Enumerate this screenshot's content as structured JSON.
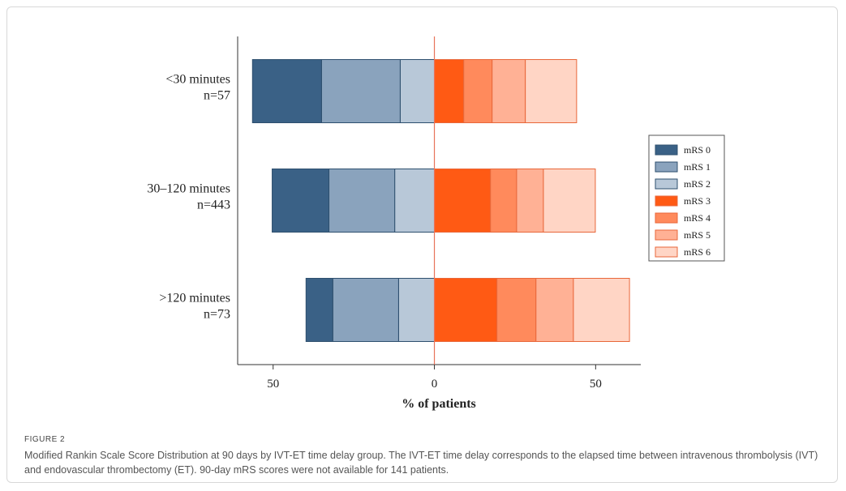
{
  "chart_data": {
    "type": "diverging_bar",
    "xlabel": "% of patients",
    "categories": [
      [
        "<30 minutes",
        "n=57"
      ],
      [
        "30–120 minutes",
        "n=443"
      ],
      [
        ">120 minutes",
        "n=73"
      ]
    ],
    "series": [
      {
        "name": "mRS 0",
        "color": "#3a6186",
        "values": [
          -21.4,
          -17.6,
          -8.3
        ]
      },
      {
        "name": "mRS 1",
        "color": "#8aa3bd",
        "values": [
          -24.4,
          -20.4,
          -20.4
        ]
      },
      {
        "name": "mRS 2",
        "color": "#b8c8d8",
        "values": [
          -10.6,
          -12.3,
          -11.1
        ]
      },
      {
        "name": "mRS 3",
        "color": "#ff5a14",
        "values": [
          9.1,
          17.4,
          19.4
        ]
      },
      {
        "name": "mRS 4",
        "color": "#ff8a5c",
        "values": [
          8.8,
          8.1,
          12.1
        ]
      },
      {
        "name": "mRS 5",
        "color": "#ffb195",
        "values": [
          10.3,
          8.3,
          11.6
        ]
      },
      {
        "name": "mRS 6",
        "color": "#ffd5c5",
        "values": [
          15.9,
          16.1,
          17.4
        ]
      }
    ],
    "xlim": [
      -61,
      64
    ],
    "xticks": [
      {
        "value": -50,
        "label": "50"
      },
      0,
      50
    ],
    "zero_line_color": "#e8735a",
    "legend": "right"
  },
  "caption": {
    "label": "FIGURE 2",
    "text": "Modified Rankin Scale Score Distribution at 90 days by IVT-ET time delay group. The IVT-ET time delay corresponds to the elapsed time between intravenous thrombolysis (IVT) and endovascular thrombectomy (ET). 90-day mRS scores were not available for 141 patients."
  }
}
